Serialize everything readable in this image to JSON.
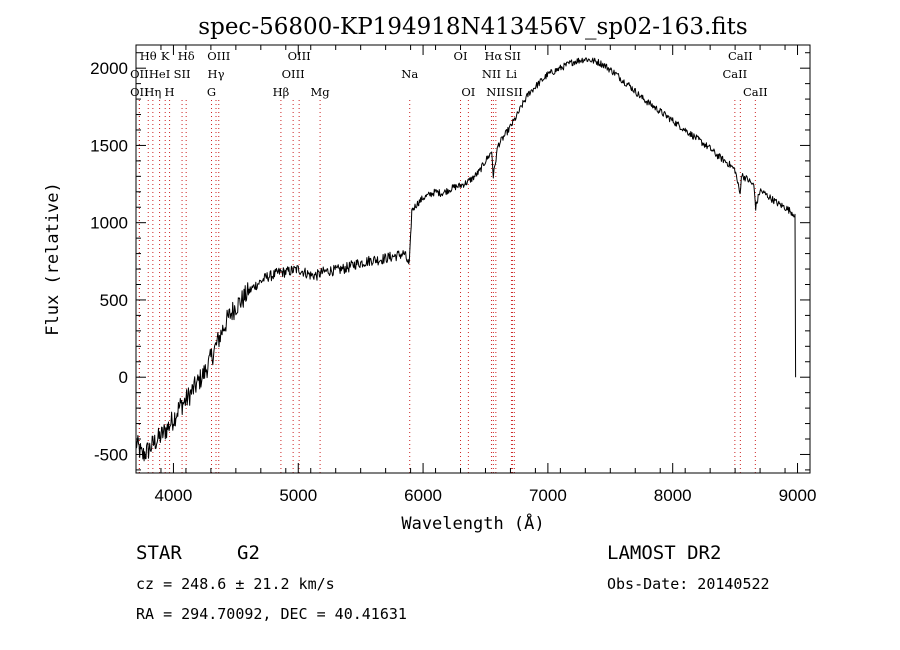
{
  "chart_data": {
    "type": "line",
    "title": "spec-56800-KP194918N413456V_sp02-163.fits",
    "xlabel": "Wavelength (Å)",
    "ylabel": "Flux (relative)",
    "xlim": [
      3700,
      9100
    ],
    "ylim": [
      -620,
      2150
    ],
    "x_ticks": [
      "4000",
      "5000",
      "6000",
      "7000",
      "8000",
      "9000"
    ],
    "y_ticks": [
      "-500",
      "0",
      "500",
      "1000",
      "1500",
      "2000"
    ],
    "grid": false,
    "series": [
      {
        "x": [
          3700,
          3750,
          3800,
          3850,
          3900,
          3950,
          4000,
          4050,
          4100,
          4150,
          4200,
          4250,
          4300,
          4350,
          4400,
          4450,
          4500,
          4550,
          4600,
          4650,
          4700,
          4750,
          4800,
          4850,
          4900,
          4950,
          5000,
          5050,
          5100,
          5150,
          5200,
          5250,
          5300,
          5350,
          5400,
          5450,
          5500,
          5550,
          5600,
          5650,
          5700,
          5750,
          5800,
          5850,
          5890,
          5910,
          5950,
          6000,
          6050,
          6100,
          6150,
          6200,
          6250,
          6300,
          6350,
          6400,
          6450,
          6500,
          6550,
          6563,
          6600,
          6650,
          6700,
          6750,
          6800,
          6850,
          6900,
          6950,
          7000,
          7050,
          7100,
          7150,
          7200,
          7250,
          7300,
          7350,
          7400,
          7450,
          7500,
          7550,
          7600,
          7650,
          7700,
          7750,
          7800,
          7850,
          7900,
          7950,
          8000,
          8050,
          8100,
          8150,
          8200,
          8250,
          8300,
          8350,
          8400,
          8450,
          8500,
          8540,
          8550,
          8600,
          8650,
          8665,
          8700,
          8750,
          8800,
          8850,
          8900,
          8950,
          8980,
          8985
        ],
        "values": [
          -420,
          -510,
          -470,
          -420,
          -380,
          -330,
          -270,
          -190,
          -150,
          -90,
          -30,
          30,
          120,
          220,
          320,
          400,
          460,
          500,
          550,
          590,
          620,
          650,
          660,
          680,
          680,
          690,
          700,
          680,
          660,
          660,
          680,
          690,
          690,
          700,
          710,
          730,
          740,
          750,
          760,
          760,
          770,
          780,
          790,
          800,
          720,
          1080,
          1120,
          1160,
          1180,
          1200,
          1190,
          1210,
          1230,
          1240,
          1260,
          1290,
          1330,
          1400,
          1460,
          1300,
          1500,
          1560,
          1620,
          1690,
          1770,
          1840,
          1880,
          1920,
          1960,
          1980,
          2000,
          2020,
          2040,
          2050,
          2060,
          2050,
          2040,
          2020,
          1990,
          1960,
          1920,
          1890,
          1850,
          1810,
          1780,
          1750,
          1720,
          1690,
          1660,
          1630,
          1600,
          1570,
          1540,
          1510,
          1480,
          1440,
          1410,
          1380,
          1340,
          1180,
          1310,
          1280,
          1240,
          1100,
          1210,
          1180,
          1150,
          1120,
          1100,
          1070,
          1050,
          0
        ]
      }
    ],
    "line_markers": [
      {
        "label": "Hθ",
        "x": 3798,
        "row": 1
      },
      {
        "label": "OII",
        "x": 3727,
        "row": 2
      },
      {
        "label": "OII",
        "x": 3727,
        "row": 3
      },
      {
        "label": "K",
        "x": 3934,
        "row": 1
      },
      {
        "label": "HeI",
        "x": 3889,
        "row": 2
      },
      {
        "label": "Hη",
        "x": 3835,
        "row": 3
      },
      {
        "label": "H",
        "x": 3969,
        "row": 3
      },
      {
        "label": "SII",
        "x": 4069,
        "row": 2
      },
      {
        "label": "Hδ",
        "x": 4102,
        "row": 1
      },
      {
        "label": "OIII",
        "x": 4363,
        "row": 1
      },
      {
        "label": "Hγ",
        "x": 4341,
        "row": 2
      },
      {
        "label": "G",
        "x": 4305,
        "row": 3
      },
      {
        "label": "OIII",
        "x": 5007,
        "row": 1
      },
      {
        "label": "OIII",
        "x": 4959,
        "row": 2
      },
      {
        "label": "Hβ",
        "x": 4861,
        "row": 3
      },
      {
        "label": "Mg",
        "x": 5175,
        "row": 3
      },
      {
        "label": "Na",
        "x": 5893,
        "row": 2
      },
      {
        "label": "OI",
        "x": 6300,
        "row": 1
      },
      {
        "label": "OI",
        "x": 6363,
        "row": 3
      },
      {
        "label": "Hα",
        "x": 6563,
        "row": 1
      },
      {
        "label": "SII",
        "x": 6716,
        "row": 1
      },
      {
        "label": "NII",
        "x": 6548,
        "row": 2
      },
      {
        "label": "Li",
        "x": 6708,
        "row": 2
      },
      {
        "label": "NII",
        "x": 6583,
        "row": 3
      },
      {
        "label": "SII",
        "x": 6731,
        "row": 3
      },
      {
        "label": "CaII",
        "x": 8542,
        "row": 1
      },
      {
        "label": "CaII",
        "x": 8498,
        "row": 2
      },
      {
        "label": "CaII",
        "x": 8662,
        "row": 3
      }
    ]
  },
  "info": {
    "class": "STAR",
    "subclass": "G2",
    "survey": "LAMOST DR2",
    "cz": "cz = 248.6 ± 21.2 km/s",
    "obs_date": "Obs-Date: 20140522",
    "radec": "RA = 294.70092, DEC =  40.41631"
  }
}
